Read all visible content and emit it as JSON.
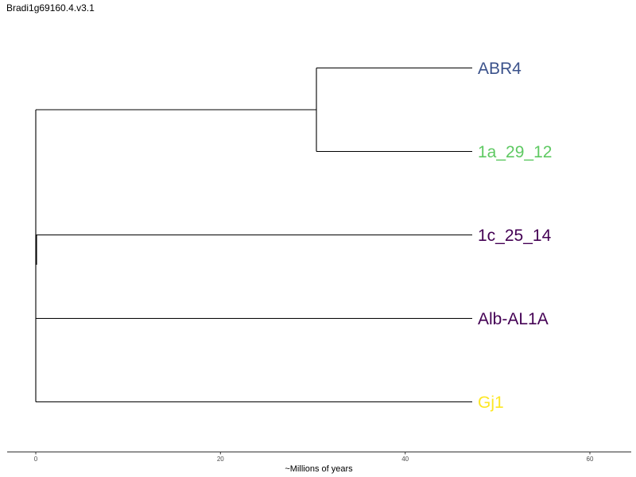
{
  "page": {
    "title": "Bradi1g69160.4.v3.1"
  },
  "tree": {
    "tips": [
      {
        "id": "abr4",
        "label": "ABR4",
        "color": "#3B528B"
      },
      {
        "id": "1a",
        "label": "1a_29_12",
        "color": "#5EC962"
      },
      {
        "id": "1c",
        "label": "1c_25_14",
        "color": "#440154"
      },
      {
        "id": "alb",
        "label": "Alb-AL1A",
        "color": "#440154"
      },
      {
        "id": "gj1",
        "label": "Gj1",
        "color": "#FDE725"
      }
    ],
    "internal_node_age": 30.5
  },
  "axis": {
    "title": "~Millions of years",
    "ticks": [
      "0",
      "20",
      "40",
      "60"
    ]
  }
}
